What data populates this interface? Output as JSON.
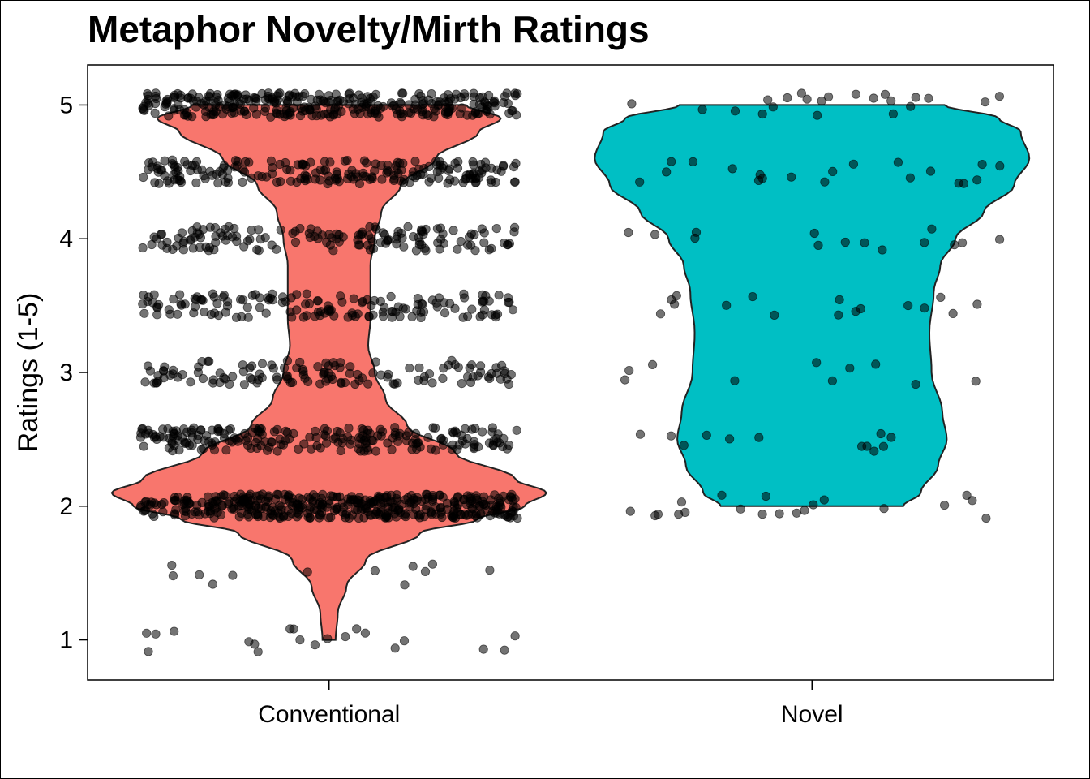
{
  "chart_data": {
    "type": "violin",
    "title": "Metaphor Novelty/Mirth Ratings",
    "xlabel": "",
    "ylabel": "Ratings (1-5)",
    "categories": [
      "Conventional",
      "Novel"
    ],
    "ylim": [
      0.7,
      5.3
    ],
    "yticks": [
      "1",
      "2",
      "3",
      "4",
      "5"
    ],
    "grid": false,
    "legend": "none",
    "colors": [
      "#F8766D",
      "#00BFC4"
    ],
    "series": [
      {
        "category": "Conventional",
        "color": "#F8766D",
        "density_profile": [
          [
            1.0,
            0.03
          ],
          [
            1.2,
            0.04
          ],
          [
            1.4,
            0.08
          ],
          [
            1.6,
            0.17
          ],
          [
            1.8,
            0.42
          ],
          [
            1.9,
            0.68
          ],
          [
            2.0,
            0.9
          ],
          [
            2.1,
            1.0
          ],
          [
            2.2,
            0.86
          ],
          [
            2.4,
            0.58
          ],
          [
            2.6,
            0.36
          ],
          [
            2.8,
            0.26
          ],
          [
            3.0,
            0.21
          ],
          [
            3.2,
            0.18
          ],
          [
            3.4,
            0.19
          ],
          [
            3.6,
            0.19
          ],
          [
            3.8,
            0.19
          ],
          [
            4.0,
            0.21
          ],
          [
            4.2,
            0.24
          ],
          [
            4.4,
            0.33
          ],
          [
            4.6,
            0.49
          ],
          [
            4.8,
            0.69
          ],
          [
            4.9,
            0.79
          ],
          [
            5.0,
            0.63
          ]
        ],
        "ratings_distribution": {
          "1": 20,
          "1.5": 12,
          "2": 420,
          "2.5": 220,
          "3": 130,
          "3.5": 150,
          "4": 150,
          "4.5": 210,
          "5": 320
        }
      },
      {
        "category": "Novel",
        "color": "#00BFC4",
        "density_profile": [
          [
            2.0,
            0.42
          ],
          [
            2.1,
            0.5
          ],
          [
            2.3,
            0.58
          ],
          [
            2.5,
            0.62
          ],
          [
            2.7,
            0.6
          ],
          [
            3.0,
            0.55
          ],
          [
            3.3,
            0.54
          ],
          [
            3.6,
            0.56
          ],
          [
            3.8,
            0.59
          ],
          [
            4.0,
            0.66
          ],
          [
            4.2,
            0.79
          ],
          [
            4.4,
            0.93
          ],
          [
            4.6,
            1.0
          ],
          [
            4.8,
            0.96
          ],
          [
            4.9,
            0.86
          ],
          [
            5.0,
            0.61
          ]
        ],
        "ratings_distribution": {
          "2": 20,
          "2.5": 12,
          "3": 10,
          "3.5": 16,
          "4": 14,
          "4.5": 20,
          "5": 22
        }
      }
    ]
  }
}
